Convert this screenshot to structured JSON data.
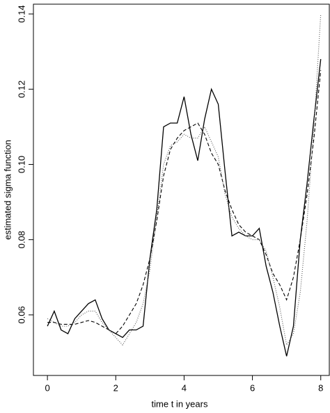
{
  "chart_data": {
    "type": "line",
    "xlabel": "time t in years",
    "ylabel": "estimated sigma function",
    "x": [
      0,
      0.2,
      0.4,
      0.6,
      0.8,
      1.0,
      1.2,
      1.4,
      1.6,
      1.8,
      2.0,
      2.2,
      2.4,
      2.6,
      2.8,
      3.0,
      3.2,
      3.4,
      3.6,
      3.8,
      4.0,
      4.2,
      4.4,
      4.6,
      4.8,
      5.0,
      5.2,
      5.4,
      5.6,
      5.8,
      6.0,
      6.2,
      6.4,
      6.6,
      6.8,
      7.0,
      7.2,
      7.4,
      7.6,
      7.8,
      8.0
    ],
    "series": [
      {
        "color": "#000000",
        "linestyle": "solid",
        "values": [
          0.057,
          0.061,
          0.056,
          0.055,
          0.059,
          0.061,
          0.063,
          0.064,
          0.059,
          0.056,
          0.055,
          0.054,
          0.056,
          0.056,
          0.057,
          0.075,
          0.088,
          0.11,
          0.111,
          0.111,
          0.118,
          0.108,
          0.101,
          0.112,
          0.12,
          0.116,
          0.098,
          0.081,
          0.082,
          0.081,
          0.081,
          0.083,
          0.073,
          0.066,
          0.057,
          0.049,
          0.057,
          0.08,
          0.095,
          0.112,
          0.128
        ]
      },
      {
        "color": "#000000",
        "linestyle": "dashed",
        "values": [
          0.058,
          0.058,
          0.0575,
          0.0575,
          0.0575,
          0.058,
          0.0585,
          0.058,
          0.057,
          0.056,
          0.055,
          0.057,
          0.06,
          0.063,
          0.068,
          0.075,
          0.085,
          0.097,
          0.104,
          0.107,
          0.109,
          0.11,
          0.111,
          0.108,
          0.103,
          0.1,
          0.093,
          0.088,
          0.084,
          0.082,
          0.081,
          0.08,
          0.076,
          0.071,
          0.068,
          0.064,
          0.07,
          0.08,
          0.092,
          0.107,
          0.125
        ]
      },
      {
        "color": "#555555",
        "linestyle": "dotted",
        "values": [
          0.059,
          0.058,
          0.057,
          0.057,
          0.058,
          0.06,
          0.061,
          0.061,
          0.058,
          0.056,
          0.054,
          0.052,
          0.055,
          0.058,
          0.063,
          0.072,
          0.086,
          0.1,
          0.105,
          0.106,
          0.108,
          0.107,
          0.107,
          0.11,
          0.106,
          0.102,
          0.092,
          0.086,
          0.083,
          0.081,
          0.08,
          0.08,
          0.077,
          0.07,
          0.062,
          0.052,
          0.055,
          0.066,
          0.085,
          0.11,
          0.14
        ]
      }
    ],
    "xlim": [
      -0.41,
      8.25
    ],
    "ylim": [
      0.0439,
      0.1426
    ],
    "xticks": [
      0,
      2,
      4,
      6,
      8
    ],
    "yticks": [
      0.06,
      0.08,
      {
        "value": 0.1,
        "label": "0.10"
      },
      0.12,
      0.14
    ],
    "grid": false
  }
}
